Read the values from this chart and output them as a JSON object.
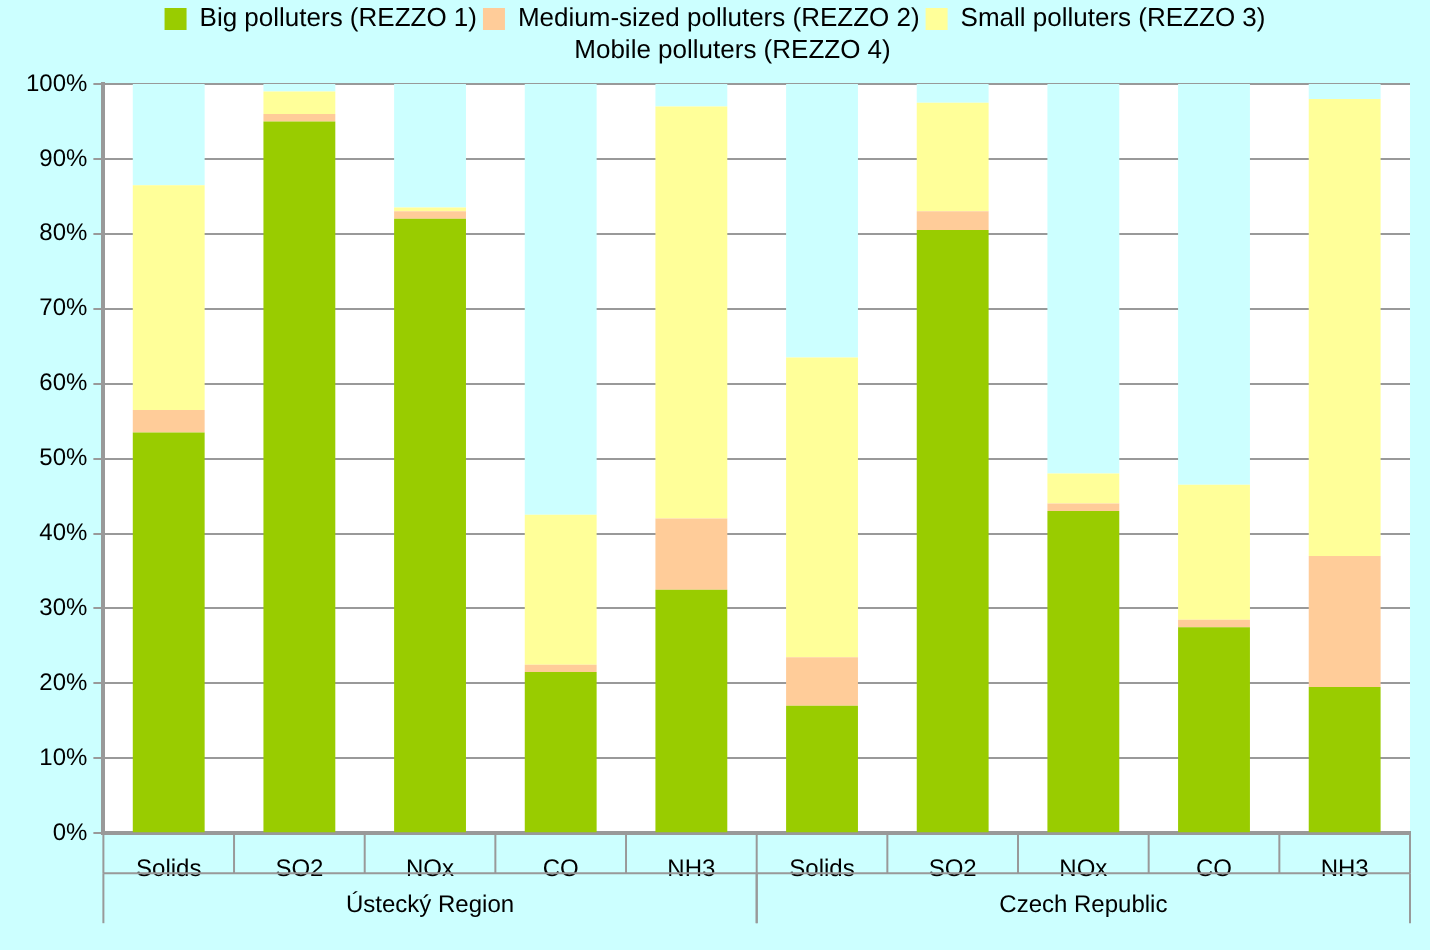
{
  "chart_data": {
    "type": "bar",
    "stacked": true,
    "categories": [
      "Solids",
      "SO2",
      "NOx",
      "CO",
      "NH3",
      "Solids",
      "SO2",
      "NOx",
      "CO",
      "NH3"
    ],
    "series": [
      {
        "name": "Big polluters (REZZO 1)",
        "color": "#99cc00",
        "values": [
          53.5,
          95,
          82,
          21.5,
          32.5,
          17,
          80.5,
          43,
          27.5,
          19.5
        ]
      },
      {
        "name": "Medium-sized polluters (REZZO 2)",
        "color": "#ffcc99",
        "values": [
          3,
          1,
          1,
          1,
          9.5,
          6.5,
          2.5,
          1,
          1,
          17.5
        ]
      },
      {
        "name": "Small polluters (REZZO 3)",
        "color": "#ffff99",
        "values": [
          30,
          3,
          0.5,
          20,
          55,
          40,
          14.5,
          4,
          18,
          61
        ]
      },
      {
        "name": "Mobile polluters (REZZO 4)",
        "color": "#ccffff",
        "values": [
          13.5,
          1,
          16.5,
          57.5,
          3,
          36.5,
          2.5,
          52,
          53.5,
          2
        ]
      }
    ],
    "ylim": [
      0,
      100
    ],
    "yticks": [
      {
        "value": 0,
        "label": "0%"
      },
      {
        "value": 10,
        "label": "10%"
      },
      {
        "value": 20,
        "label": "20%"
      },
      {
        "value": 30,
        "label": "30%"
      },
      {
        "value": 40,
        "label": "40%"
      },
      {
        "value": 50,
        "label": "50%"
      },
      {
        "value": 60,
        "label": "60%"
      },
      {
        "value": 70,
        "label": "70%"
      },
      {
        "value": 80,
        "label": "80%"
      },
      {
        "value": 90,
        "label": "90%"
      },
      {
        "value": 100,
        "label": "100%"
      }
    ],
    "grid": "y",
    "legend": "top",
    "annotations": [
      "Ústecký Region",
      "Czech Republic"
    ]
  }
}
